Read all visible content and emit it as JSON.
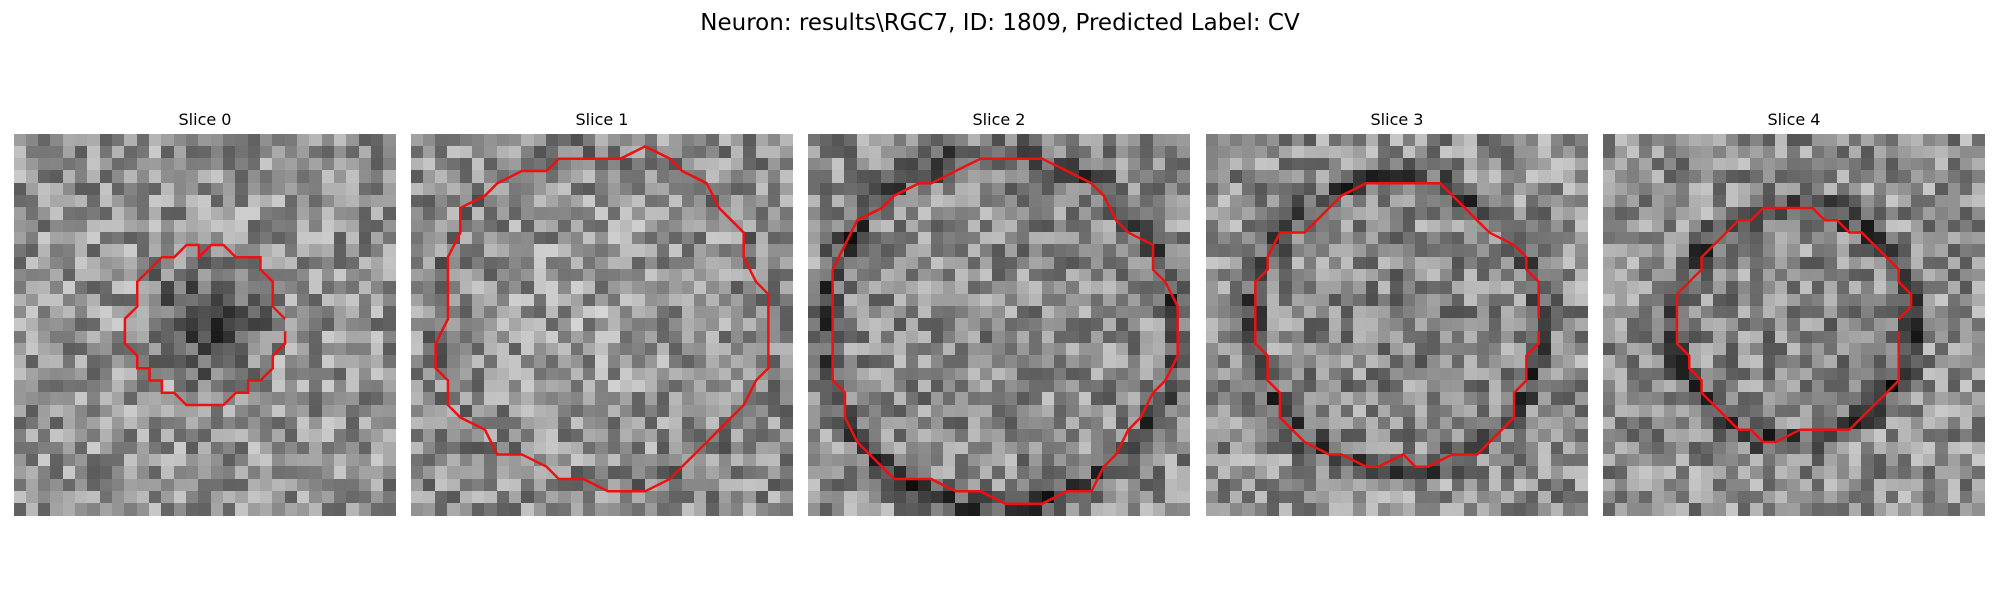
{
  "figure": {
    "title": "Neuron: results\\RGC7, ID: 1809, Predicted Label: CV"
  },
  "colors": {
    "contour": "#ee1111",
    "background": "#ffffff"
  },
  "panels": [
    {
      "title": "Slice 0"
    },
    {
      "title": "Slice 1"
    },
    {
      "title": "Slice 2"
    },
    {
      "title": "Slice 3"
    },
    {
      "title": "Slice 4"
    }
  ]
}
